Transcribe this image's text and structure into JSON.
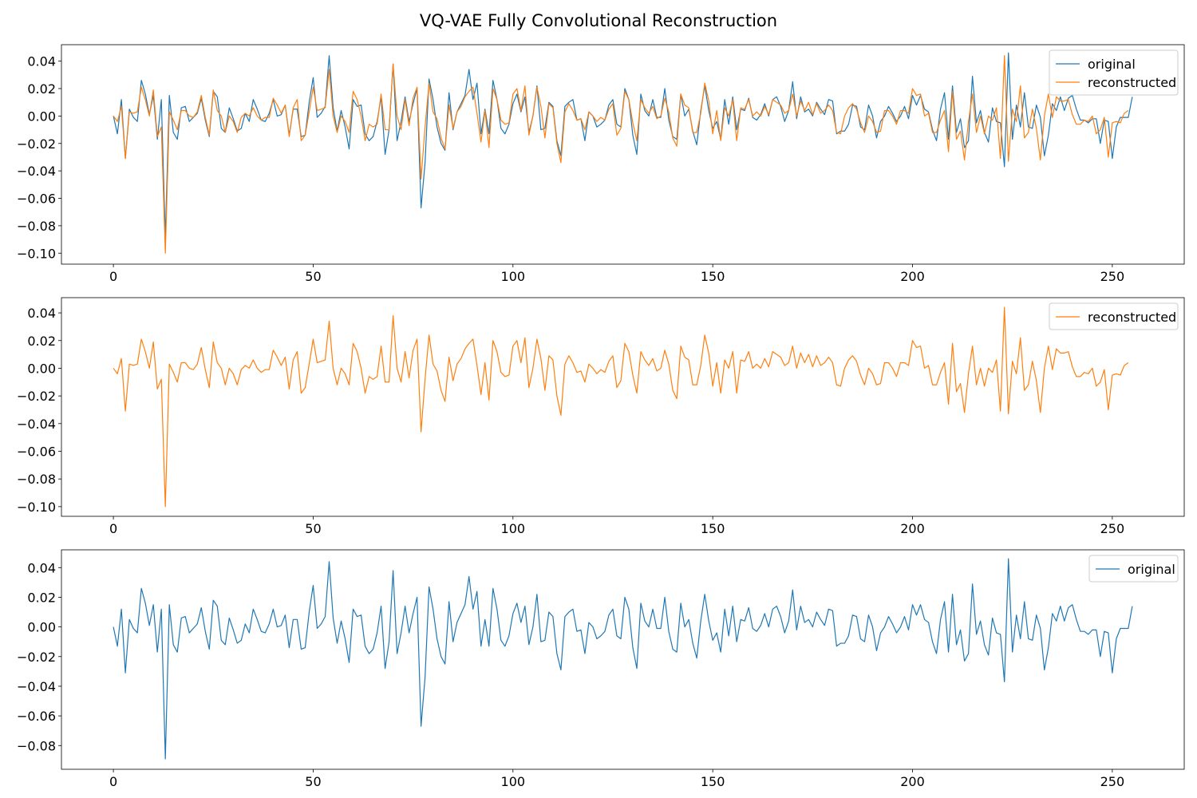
{
  "title": "VQ-VAE Fully Convolutional Reconstruction",
  "colors": {
    "original": "#1f77b4",
    "reconstructed": "#ff7f0e"
  },
  "chart_data": [
    {
      "type": "line",
      "xlim": [
        -13,
        268
      ],
      "ylim": [
        -0.108,
        0.052
      ],
      "xticks": [
        0,
        50,
        100,
        150,
        200,
        250
      ],
      "yticks": [
        0.04,
        0.02,
        0.0,
        -0.02,
        -0.04,
        -0.06,
        -0.08,
        -0.1
      ],
      "ytick_labels": [
        "0.04",
        "0.02",
        "0.00",
        "−0.02",
        "−0.04",
        "−0.06",
        "−0.08",
        "−0.10"
      ],
      "legend": {
        "placement": "top-right",
        "entries": [
          "original",
          "reconstructed"
        ]
      },
      "series": [
        "original",
        "reconstructed"
      ]
    },
    {
      "type": "line",
      "xlim": [
        -13,
        268
      ],
      "ylim": [
        -0.107,
        0.051
      ],
      "xticks": [
        0,
        50,
        100,
        150,
        200,
        250
      ],
      "yticks": [
        0.04,
        0.02,
        0.0,
        -0.02,
        -0.04,
        -0.06,
        -0.08,
        -0.1
      ],
      "ytick_labels": [
        "0.04",
        "0.02",
        "0.00",
        "−0.02",
        "−0.04",
        "−0.06",
        "−0.08",
        "−0.10"
      ],
      "legend": {
        "placement": "top-right",
        "entries": [
          "reconstructed"
        ]
      },
      "series": [
        "reconstructed"
      ]
    },
    {
      "type": "line",
      "xlim": [
        -13,
        268
      ],
      "ylim": [
        -0.096,
        0.052
      ],
      "xticks": [
        0,
        50,
        100,
        150,
        200,
        250
      ],
      "yticks": [
        0.04,
        0.02,
        0.0,
        -0.02,
        -0.04,
        -0.06,
        -0.08
      ],
      "ytick_labels": [
        "0.04",
        "0.02",
        "0.00",
        "−0.02",
        "−0.04",
        "−0.06",
        "−0.08"
      ],
      "legend": {
        "placement": "top-right",
        "entries": [
          "original"
        ]
      },
      "series": [
        "original"
      ]
    }
  ],
  "series_data": {
    "original": [
      0.0,
      -0.013,
      0.012,
      -0.031,
      0.005,
      -0.001,
      -0.004,
      0.026,
      0.016,
      0.001,
      0.015,
      -0.017,
      0.012,
      -0.089,
      0.015,
      -0.012,
      -0.017,
      0.006,
      0.007,
      -0.004,
      -0.001,
      0.002,
      0.013,
      -0.003,
      -0.015,
      0.018,
      0.014,
      -0.009,
      -0.012,
      0.006,
      -0.002,
      -0.011,
      -0.009,
      0.002,
      -0.004,
      0.012,
      0.005,
      -0.003,
      -0.004,
      0.002,
      0.012,
      0.0,
      0.001,
      0.008,
      -0.014,
      0.005,
      0.005,
      -0.015,
      -0.014,
      0.01,
      0.028,
      -0.001,
      0.002,
      0.007,
      0.044,
      0.006,
      -0.011,
      0.004,
      -0.008,
      -0.024,
      0.012,
      0.007,
      0.008,
      -0.013,
      -0.018,
      -0.015,
      -0.004,
      0.014,
      -0.028,
      -0.01,
      0.038,
      -0.018,
      -0.004,
      0.014,
      -0.004,
      0.009,
      0.02,
      -0.067,
      -0.034,
      0.027,
      0.012,
      -0.008,
      -0.02,
      -0.025,
      0.017,
      -0.01,
      0.003,
      0.009,
      0.015,
      0.034,
      0.012,
      0.024,
      -0.013,
      0.005,
      -0.013,
      0.026,
      0.012,
      -0.009,
      -0.013,
      -0.006,
      0.009,
      0.016,
      0.003,
      0.014,
      -0.012,
      0.0,
      0.022,
      -0.01,
      -0.009,
      0.01,
      0.007,
      -0.018,
      -0.029,
      0.007,
      0.01,
      0.012,
      -0.003,
      -0.002,
      -0.018,
      0.003,
      0.0,
      -0.008,
      -0.006,
      -0.003,
      0.008,
      0.012,
      -0.006,
      -0.008,
      0.02,
      0.012,
      -0.014,
      -0.028,
      0.016,
      0.004,
      0.0,
      0.012,
      -0.001,
      -0.001,
      0.02,
      -0.003,
      -0.015,
      -0.017,
      0.016,
      0.0,
      0.005,
      -0.011,
      -0.021,
      0.004,
      0.022,
      0.004,
      -0.009,
      -0.004,
      -0.017,
      0.012,
      -0.006,
      0.014,
      -0.01,
      0.005,
      0.004,
      0.013,
      -0.001,
      -0.003,
      0.001,
      0.009,
      0.0,
      0.012,
      0.014,
      0.007,
      -0.004,
      0.004,
      0.025,
      -0.002,
      0.014,
      0.003,
      0.005,
      0.0,
      0.01,
      0.005,
      0.001,
      0.012,
      0.011,
      -0.013,
      -0.011,
      -0.011,
      -0.006,
      0.008,
      0.007,
      -0.008,
      -0.01,
      0.008,
      0.0,
      -0.016,
      -0.004,
      0.0,
      0.007,
      0.002,
      -0.004,
      0.0,
      0.007,
      -0.002,
      0.015,
      0.008,
      0.015,
      0.005,
      0.003,
      -0.01,
      -0.018,
      0.005,
      0.017,
      -0.017,
      0.022,
      -0.012,
      -0.002,
      -0.023,
      -0.018,
      0.029,
      -0.005,
      0.004,
      -0.012,
      -0.019,
      0.006,
      -0.004,
      -0.005,
      -0.037,
      0.046,
      -0.017,
      0.008,
      -0.008,
      0.017,
      -0.008,
      -0.009,
      0.008,
      -0.001,
      -0.029,
      -0.014,
      0.009,
      0.004,
      0.014,
      0.004,
      0.013,
      0.015,
      0.005,
      -0.003,
      -0.003,
      -0.005,
      -0.002,
      -0.002,
      -0.02,
      -0.003,
      -0.004,
      -0.031,
      -0.008,
      -0.001,
      -0.001,
      -0.001,
      0.014
    ],
    "reconstructed": [
      0.0,
      -0.004,
      0.007,
      -0.031,
      0.003,
      0.002,
      0.003,
      0.021,
      0.012,
      0.0,
      0.019,
      -0.015,
      -0.008,
      -0.1,
      0.003,
      -0.003,
      -0.01,
      0.004,
      0.004,
      0.0,
      -0.001,
      0.003,
      0.015,
      -0.001,
      -0.014,
      0.019,
      0.004,
      0.0,
      -0.012,
      0.0,
      -0.004,
      -0.012,
      -0.001,
      0.002,
      0.0,
      0.006,
      0.0,
      -0.003,
      -0.001,
      -0.001,
      0.013,
      0.008,
      0.002,
      0.008,
      -0.015,
      0.006,
      0.012,
      -0.018,
      -0.014,
      0.003,
      0.021,
      0.004,
      0.005,
      0.006,
      0.034,
      0.0,
      -0.012,
      0.0,
      -0.004,
      -0.012,
      0.018,
      0.012,
      0.0,
      -0.018,
      -0.006,
      -0.008,
      -0.006,
      0.016,
      -0.01,
      -0.01,
      0.038,
      0.0,
      -0.01,
      0.012,
      -0.007,
      0.013,
      0.021,
      -0.046,
      -0.008,
      0.024,
      0.003,
      -0.002,
      -0.016,
      -0.024,
      0.008,
      -0.009,
      0.003,
      0.007,
      0.014,
      0.018,
      0.021,
      0.002,
      -0.019,
      0.004,
      -0.023,
      0.02,
      0.012,
      -0.003,
      -0.006,
      -0.005,
      0.016,
      0.02,
      0.004,
      0.022,
      -0.014,
      0.0,
      0.021,
      0.007,
      -0.016,
      0.009,
      0.006,
      -0.02,
      -0.034,
      0.003,
      0.009,
      0.004,
      -0.003,
      -0.002,
      -0.01,
      0.003,
      0.0,
      -0.004,
      -0.001,
      -0.003,
      0.005,
      0.009,
      -0.014,
      -0.009,
      0.018,
      0.012,
      -0.005,
      -0.018,
      0.012,
      0.006,
      0.002,
      0.007,
      -0.002,
      0.0,
      0.013,
      0.003,
      -0.016,
      -0.022,
      0.016,
      0.008,
      0.006,
      -0.012,
      -0.012,
      0.002,
      0.024,
      0.011,
      -0.013,
      0.004,
      -0.018,
      0.006,
      0.0,
      0.012,
      -0.018,
      0.006,
      0.005,
      0.012,
      0.0,
      0.003,
      0.0,
      0.007,
      0.001,
      0.012,
      0.01,
      0.008,
      0.002,
      0.004,
      0.016,
      0.0,
      0.011,
      0.004,
      0.01,
      0.001,
      0.009,
      0.002,
      0.004,
      0.008,
      0.004,
      -0.012,
      -0.013,
      0.0,
      0.006,
      0.009,
      0.005,
      -0.005,
      -0.012,
      0.0,
      -0.004,
      -0.012,
      -0.011,
      0.004,
      0.004,
      0.0,
      -0.006,
      0.004,
      0.004,
      0.002,
      0.02,
      0.015,
      0.016,
      0.0,
      0.002,
      -0.012,
      -0.012,
      -0.003,
      0.004,
      -0.026,
      0.018,
      -0.017,
      -0.011,
      -0.032,
      -0.004,
      0.016,
      -0.012,
      0.0,
      -0.013,
      0.0,
      -0.003,
      0.006,
      -0.031,
      0.044,
      -0.033,
      0.005,
      -0.004,
      0.022,
      -0.016,
      -0.012,
      0.005,
      -0.009,
      -0.032,
      0.0,
      0.016,
      -0.001,
      0.014,
      0.011,
      0.011,
      0.012,
      0.001,
      -0.006,
      -0.006,
      -0.003,
      -0.004,
      0.0,
      -0.013,
      -0.01,
      -0.001,
      -0.03,
      -0.005,
      -0.004,
      -0.005,
      0.002,
      0.004
    ]
  }
}
